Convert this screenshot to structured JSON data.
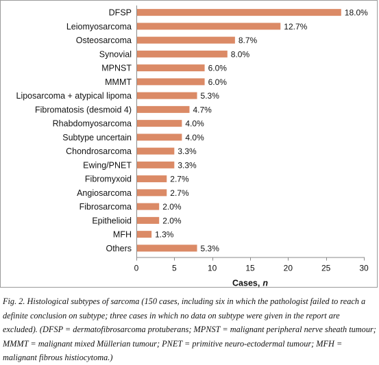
{
  "chart_data": {
    "type": "bar",
    "orientation": "horizontal",
    "categories": [
      "DFSP",
      "Leiomyosarcoma",
      "Osteosarcoma",
      "Synovial",
      "MPNST",
      "MMMT",
      "Liposarcoma + atypical lipoma",
      "Fibromatosis (desmoid 4)",
      "Rhabdomyosarcoma",
      "Subtype uncertain",
      "Chondrosarcoma",
      "Ewing/PNET",
      "Fibromyxoid",
      "Angiosarcoma",
      "Fibrosarcoma",
      "Epithelioid",
      "MFH",
      "Others"
    ],
    "values": [
      27,
      19,
      13,
      12,
      9,
      9,
      8,
      7,
      6,
      6,
      5,
      5,
      4,
      4,
      3,
      3,
      2,
      8
    ],
    "data_labels": [
      "18.0%",
      "12.7%",
      "8.7%",
      "8.0%",
      "6.0%",
      "6.0%",
      "5.3%",
      "4.7%",
      "4.0%",
      "4.0%",
      "3.3%",
      "3.3%",
      "2.7%",
      "2.7%",
      "2.0%",
      "2.0%",
      "1.3%",
      "5.3%"
    ],
    "xlabel_main": "Cases,",
    "xlabel_var": "n",
    "xlim": [
      0,
      30
    ],
    "xticks": [
      0,
      5,
      10,
      15,
      20,
      25,
      30
    ],
    "bar_color": "#db8a66",
    "grid": false
  },
  "caption": "Fig. 2. Histological subtypes of sarcoma (150 cases, including six in which the pathologist failed to reach a definite conclusion on subtype; three cases in which no data on subtype were given in the report are excluded). (DFSP = dermatofibrosarcoma protuberans; MPNST = malignant peripheral nerve sheath tumour; MMMT = malignant mixed Müllerian tumour; PNET = primitive neuro-ectodermal tumour; MFH = malignant fibrous histiocytoma.)"
}
